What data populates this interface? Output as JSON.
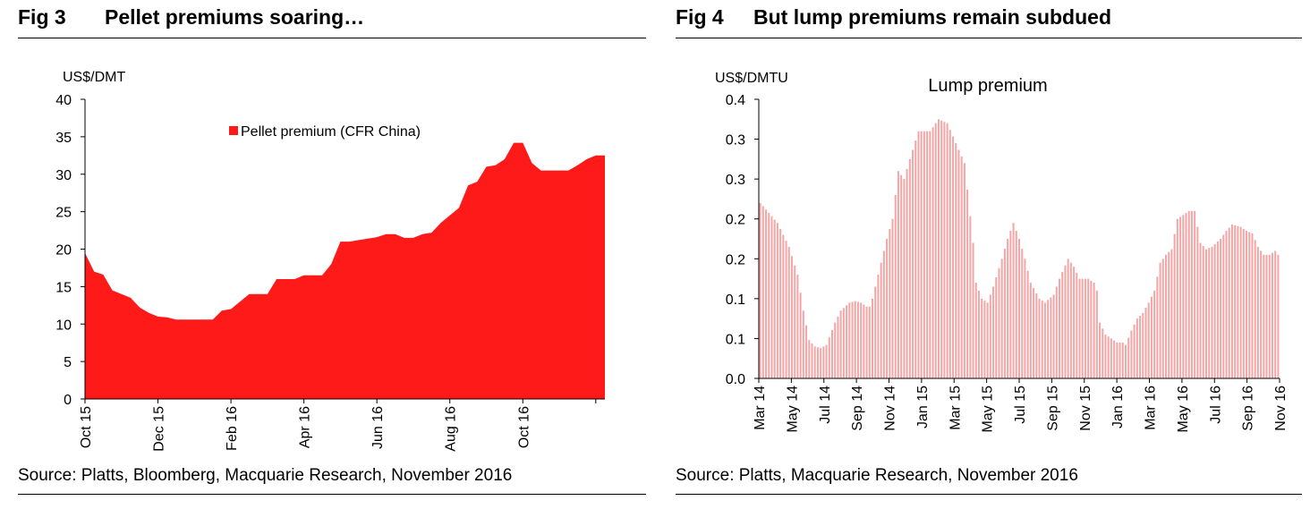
{
  "left": {
    "fig_number": "Fig 3",
    "fig_title": "Pellet premiums soaring…",
    "source": "Source: Platts, Bloomberg, Macquarie Research, November 2016"
  },
  "right": {
    "fig_number": "Fig 4",
    "fig_title": "But lump premiums remain subdued",
    "source": "Source: Platts, Macquarie Research, November 2016"
  },
  "chart_data": [
    {
      "type": "area",
      "title": "",
      "xlabel": "",
      "ylabel": "US$/DMT",
      "ylim": [
        0,
        40
      ],
      "yticks": [
        "0",
        "5",
        "10",
        "15",
        "20",
        "25",
        "30",
        "35",
        "40"
      ],
      "xtick_labels": [
        "Oct 15",
        "Dec 15",
        "Feb 16",
        "Apr 16",
        "Jun 16",
        "Aug 16",
        "Oct 16"
      ],
      "xtick_index": [
        0,
        8,
        16,
        24,
        32,
        40,
        48
      ],
      "legend": {
        "label": "Pellet premium (CFR China)",
        "color": "#ff1a1a",
        "position": "top-center"
      },
      "series": [
        {
          "name": "Pellet premium (CFR China)",
          "color": "#ff1a1a",
          "values": [
            19.5,
            17,
            16.6,
            14.5,
            14,
            13.5,
            12.2,
            11.5,
            11,
            10.9,
            10.6,
            10.6,
            10.6,
            10.6,
            10.6,
            11.8,
            12,
            13,
            14,
            14,
            14,
            16,
            16,
            16,
            16.5,
            16.5,
            16.5,
            18,
            21,
            21,
            21.2,
            21.4,
            21.6,
            22,
            22,
            21.5,
            21.5,
            22,
            22.2,
            23.5,
            24.5,
            25.5,
            28.5,
            29,
            31,
            31.2,
            32,
            34.2,
            34.2,
            31.5,
            30.5,
            30.5,
            30.5,
            30.5,
            31.2,
            32,
            32.5,
            32.5
          ]
        }
      ]
    },
    {
      "type": "bar",
      "title": "Lump premium",
      "xlabel": "",
      "ylabel": "US$/DMTU",
      "ylim": [
        0,
        0.35
      ],
      "yticks": [
        "0.0",
        "0.1",
        "0.1",
        "0.2",
        "0.2",
        "0.3",
        "0.3",
        "0.4"
      ],
      "xtick_labels": [
        "Mar 14",
        "May 14",
        "Jul 14",
        "Sep 14",
        "Nov 14",
        "Jan 15",
        "Mar 15",
        "May 15",
        "Jul 15",
        "Sep 15",
        "Nov 15",
        "Jan 16",
        "Mar 16",
        "May 16",
        "Jul 16",
        "Sep 16",
        "Nov 16"
      ],
      "series": [
        {
          "name": "Lump premium",
          "color": "#f4a6a6",
          "weekly_anchors": [
            [
              0,
              0.22
            ],
            [
              6,
              0.195
            ],
            [
              10,
              0.165
            ],
            [
              13,
              0.13
            ],
            [
              15,
              0.085
            ],
            [
              17,
              0.048
            ],
            [
              19,
              0.04
            ],
            [
              21,
              0.038
            ],
            [
              23,
              0.042
            ],
            [
              26,
              0.07
            ],
            [
              28,
              0.085
            ],
            [
              31,
              0.095
            ],
            [
              33,
              0.097
            ],
            [
              35,
              0.095
            ],
            [
              37,
              0.09
            ],
            [
              38,
              0.09
            ],
            [
              39,
              0.1
            ],
            [
              42,
              0.145
            ],
            [
              44,
              0.175
            ],
            [
              46,
              0.2
            ],
            [
              48,
              0.26
            ],
            [
              50,
              0.25
            ],
            [
              52,
              0.275
            ],
            [
              55,
              0.31
            ],
            [
              59,
              0.31
            ],
            [
              62,
              0.325
            ],
            [
              65,
              0.32
            ],
            [
              68,
              0.295
            ],
            [
              71,
              0.27
            ],
            [
              74,
              0.17
            ],
            [
              75,
              0.12
            ],
            [
              77,
              0.1
            ],
            [
              79,
              0.095
            ],
            [
              81,
              0.115
            ],
            [
              84,
              0.15
            ],
            [
              86,
              0.175
            ],
            [
              88,
              0.195
            ],
            [
              90,
              0.175
            ],
            [
              92,
              0.15
            ],
            [
              94,
              0.12
            ],
            [
              97,
              0.1
            ],
            [
              99,
              0.095
            ],
            [
              102,
              0.105
            ],
            [
              104,
              0.125
            ],
            [
              107,
              0.15
            ],
            [
              109,
              0.14
            ],
            [
              111,
              0.125
            ],
            [
              114,
              0.125
            ],
            [
              116,
              0.12
            ],
            [
              117,
              0.11
            ],
            [
              118,
              0.07
            ],
            [
              120,
              0.055
            ],
            [
              122,
              0.05
            ],
            [
              124,
              0.045
            ],
            [
              126,
              0.045
            ],
            [
              127,
              0.042
            ],
            [
              129,
              0.06
            ],
            [
              131,
              0.075
            ],
            [
              133,
              0.082
            ],
            [
              135,
              0.095
            ],
            [
              137,
              0.11
            ],
            [
              139,
              0.145
            ],
            [
              141,
              0.155
            ],
            [
              143,
              0.162
            ],
            [
              145,
              0.2
            ],
            [
              147,
              0.205
            ],
            [
              149,
              0.21
            ],
            [
              151,
              0.21
            ],
            [
              153,
              0.17
            ],
            [
              155,
              0.162
            ],
            [
              157,
              0.165
            ],
            [
              160,
              0.175
            ],
            [
              162,
              0.185
            ],
            [
              164,
              0.193
            ],
            [
              167,
              0.19
            ],
            [
              169,
              0.185
            ],
            [
              171,
              0.182
            ],
            [
              173,
              0.165
            ],
            [
              175,
              0.155
            ],
            [
              177,
              0.155
            ],
            [
              179,
              0.16
            ],
            [
              180,
              0.155
            ]
          ]
        }
      ]
    }
  ]
}
